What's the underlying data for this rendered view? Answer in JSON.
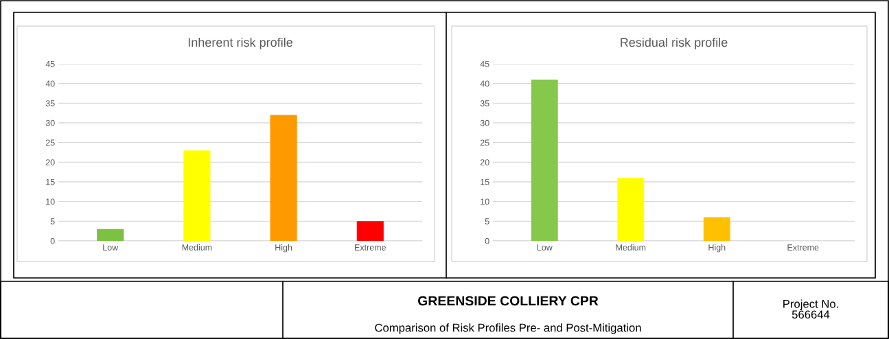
{
  "chart_data": [
    {
      "type": "bar",
      "title": "Inherent risk profile",
      "categories": [
        "Low",
        "Medium",
        "High",
        "Extreme"
      ],
      "values": [
        3,
        23,
        32,
        5
      ],
      "colors": [
        "#7cc142",
        "#ffff00",
        "#ff9900",
        "#ff0000"
      ],
      "ylim": [
        0,
        45
      ],
      "yticks": [
        0,
        5,
        10,
        15,
        20,
        25,
        30,
        35,
        40,
        45
      ],
      "grid": "y",
      "legend": false,
      "annotations": [
        "GREENSIDE COLLIERY CPR",
        "Comparison of Risk Profiles Pre- and Post-Mitigation",
        "Project No.\n566644"
      ]
    },
    {
      "type": "bar",
      "title": "Residual risk profile",
      "categories": [
        "Low",
        "Medium",
        "High",
        "Extreme"
      ],
      "values": [
        41,
        16,
        6,
        0
      ],
      "colors": [
        "#86c84a",
        "#ffff00",
        "#ffc000",
        "#ff0000"
      ],
      "ylim": [
        0,
        45
      ],
      "yticks": [
        0,
        5,
        10,
        15,
        20,
        25,
        30,
        35,
        40,
        45
      ],
      "grid": "y",
      "legend": false
    }
  ]
}
